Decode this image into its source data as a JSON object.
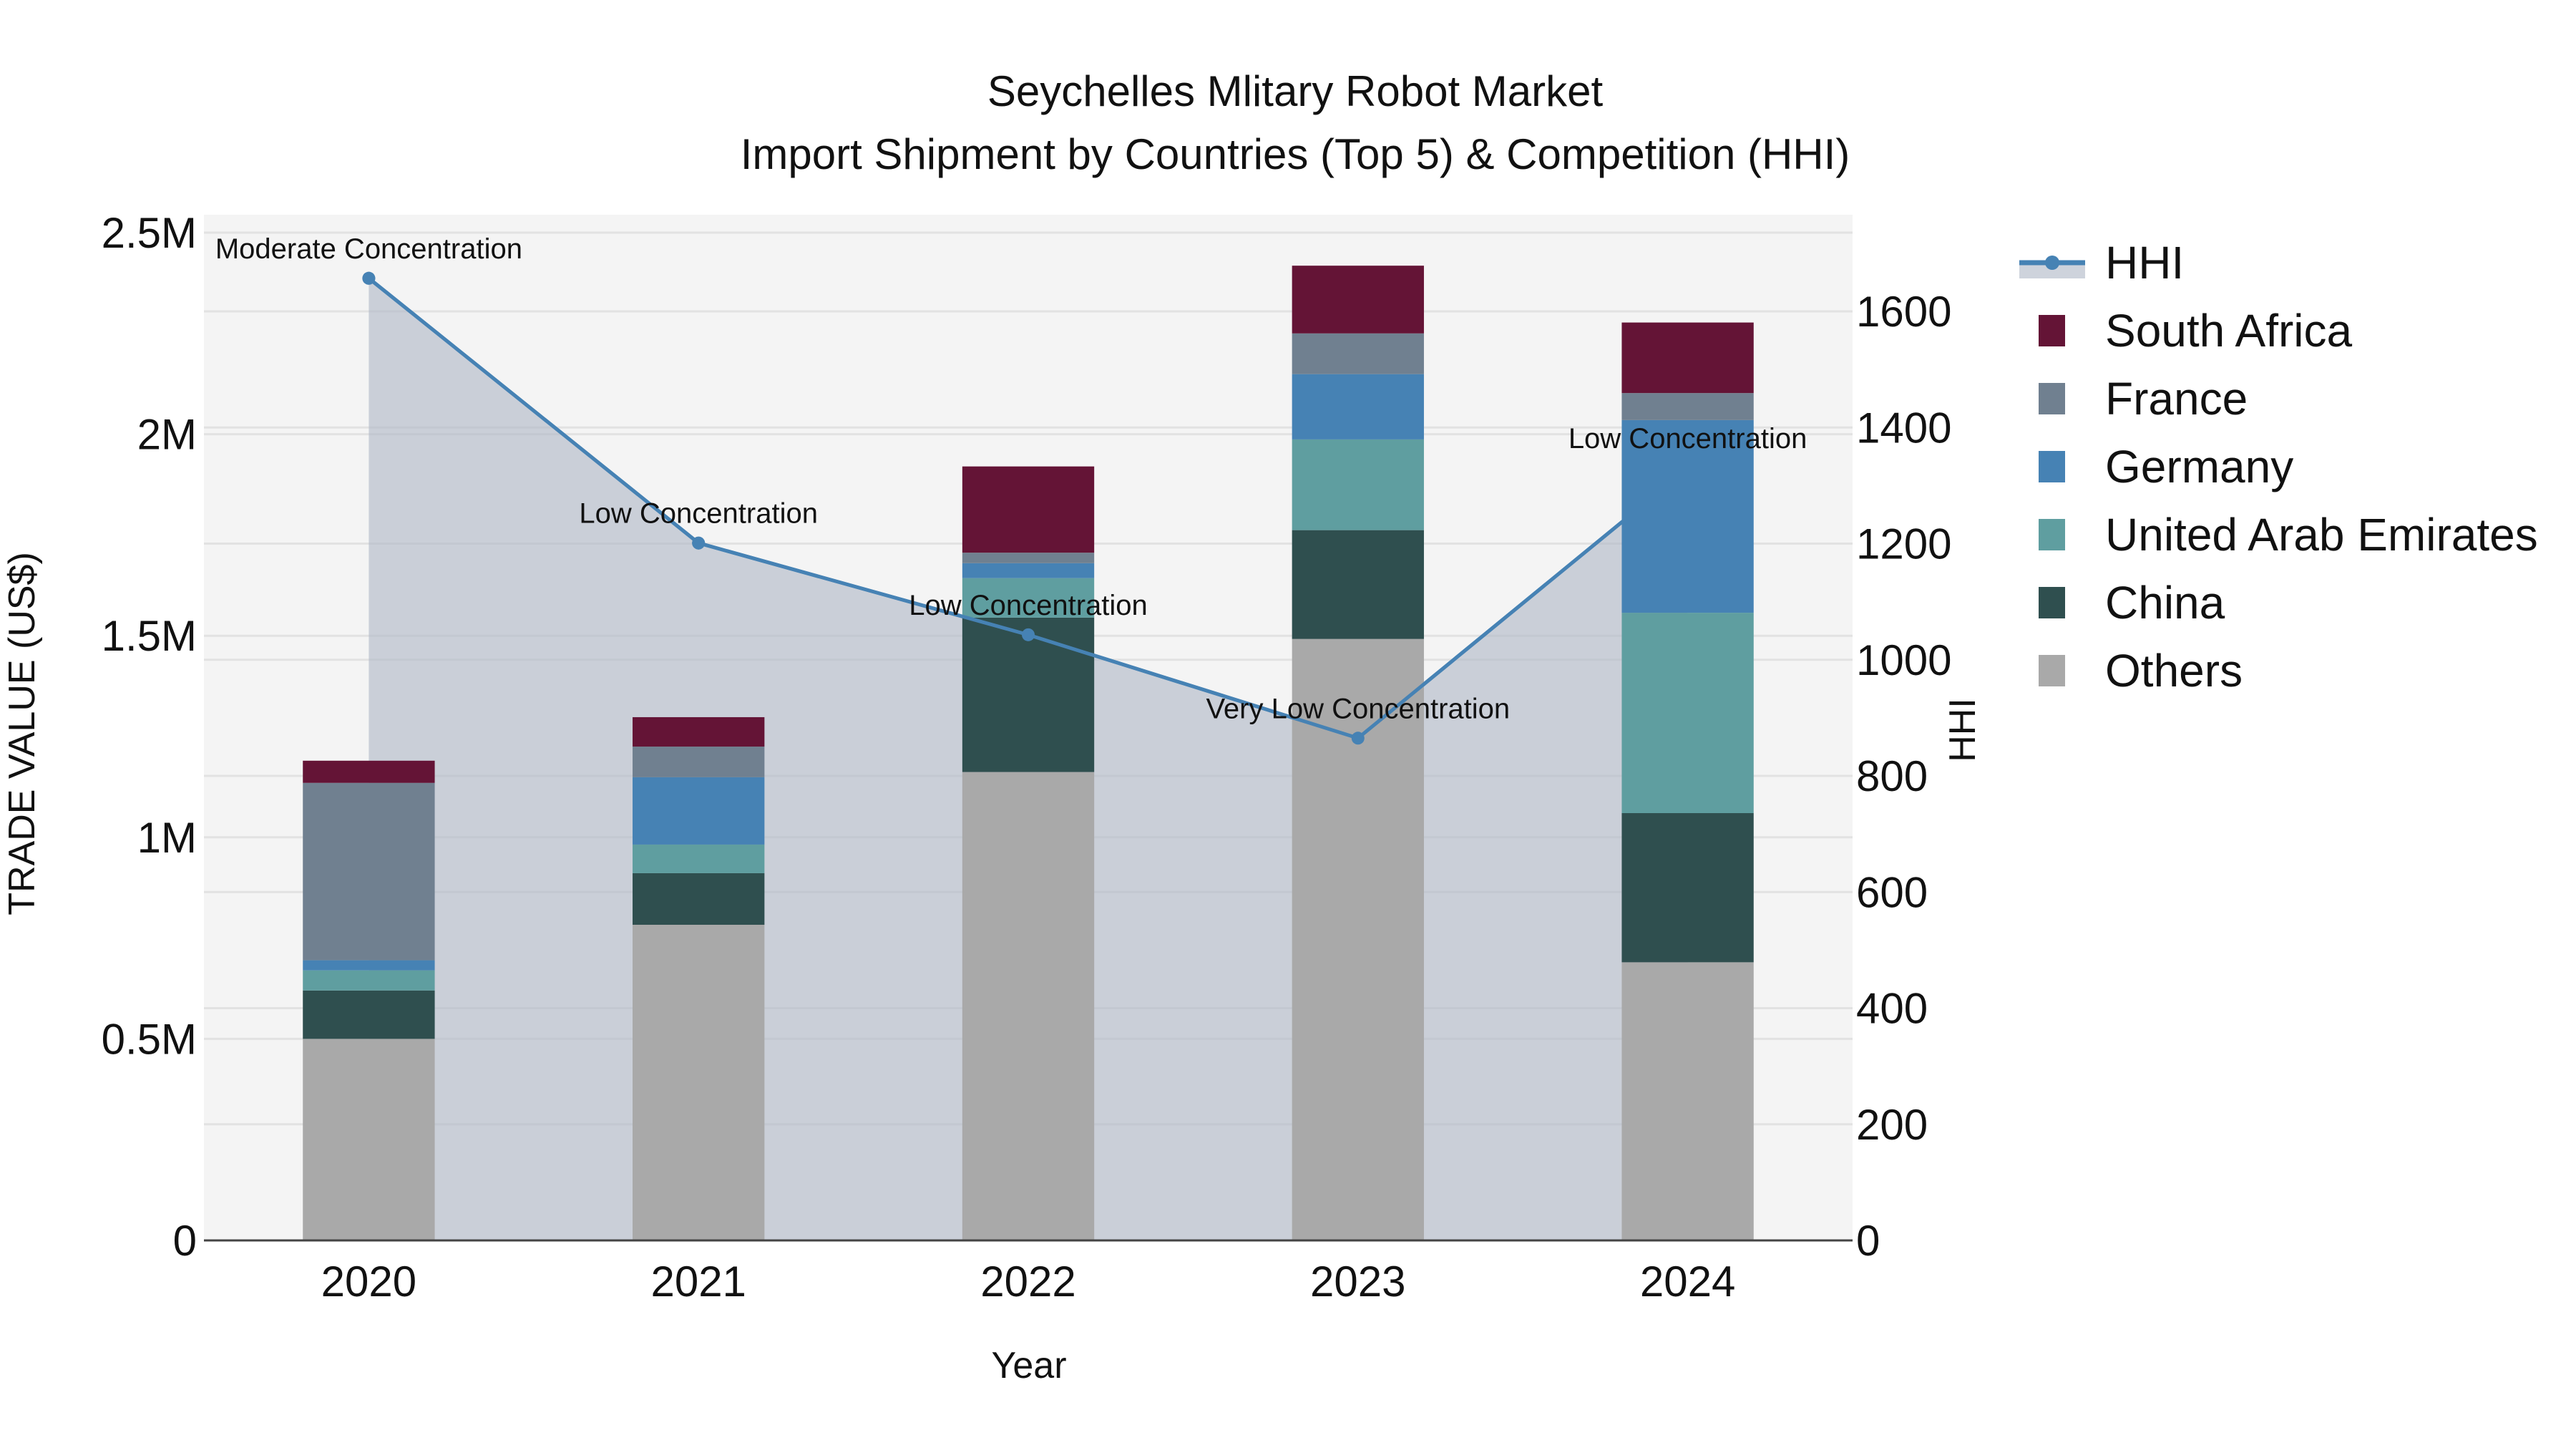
{
  "chart": {
    "title_line1": "Seychelles Mlitary Robot Market",
    "title_line2": "Import Shipment by Countries (Top 5) & Competition (HHI)",
    "xaxis_title": "Year",
    "yaxis_left_title": "TRADE VALUE (US$)",
    "yaxis_right_title": "HHI",
    "left_ticks": [
      "0",
      "0.5M",
      "1M",
      "1.5M",
      "2M",
      "2.5M"
    ],
    "right_ticks": [
      "0",
      "200",
      "400",
      "600",
      "800",
      "1000",
      "1200",
      "1400",
      "1600"
    ]
  },
  "colors": {
    "plot_bg": "#f4f4f4",
    "grid": "#e2e2e2",
    "hhi_line": "#4682b4",
    "hhi_fill": "rgba(176,184,198,0.62)",
    "South Africa": "#641436",
    "France": "#708090",
    "Germany": "#4682b4",
    "United Arab Emirates": "#5f9ea0",
    "China": "#2f4f4f",
    "Others": "#a9a9a9"
  },
  "legend": [
    {
      "label": "HHI",
      "type": "line"
    },
    {
      "label": "South Africa",
      "type": "box"
    },
    {
      "label": "France",
      "type": "box"
    },
    {
      "label": "Germany",
      "type": "box"
    },
    {
      "label": "United Arab Emirates",
      "type": "box"
    },
    {
      "label": "China",
      "type": "box"
    },
    {
      "label": "Others",
      "type": "box"
    }
  ],
  "chart_data": {
    "type": "bar",
    "stacked": true,
    "title": "Seychelles Mlitary Robot Market — Import Shipment by Countries (Top 5) & Competition (HHI)",
    "xlabel": "Year",
    "ylabel": "TRADE VALUE (US$)",
    "y2label": "HHI",
    "ylim": [
      0,
      2500000
    ],
    "y2lim": [
      0,
      1727
    ],
    "grid": true,
    "legend_position": "right",
    "categories": [
      "2020",
      "2021",
      "2022",
      "2023",
      "2024"
    ],
    "series": [
      {
        "name": "Others",
        "values": [
          500000,
          783000,
          1162000,
          1492000,
          690000
        ]
      },
      {
        "name": "China",
        "values": [
          120000,
          128000,
          383000,
          270000,
          370000
        ]
      },
      {
        "name": "United Arab Emirates",
        "values": [
          50000,
          71000,
          98000,
          225000,
          497000
        ]
      },
      {
        "name": "Germany",
        "values": [
          25000,
          167000,
          37000,
          162000,
          478000
        ]
      },
      {
        "name": "France",
        "values": [
          440000,
          76000,
          26000,
          101000,
          67000
        ]
      },
      {
        "name": "South Africa",
        "values": [
          55000,
          73000,
          214000,
          168000,
          175000
        ]
      }
    ],
    "line_series": {
      "name": "HHI",
      "axis": "right",
      "values": [
        1657,
        1201,
        1043,
        865,
        1330
      ],
      "annotations": [
        "Moderate Concentration",
        "Low Concentration",
        "Low Concentration",
        "Very Low Concentration",
        "Low Concentration"
      ]
    }
  }
}
